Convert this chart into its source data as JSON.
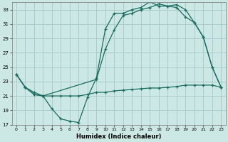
{
  "xlabel": "Humidex (Indice chaleur)",
  "bg_color": "#cce8e4",
  "grid_color": "#aaccca",
  "line_color": "#1a6b60",
  "xlim": [
    -0.5,
    23.5
  ],
  "ylim": [
    17,
    34
  ],
  "xticks": [
    0,
    1,
    2,
    3,
    4,
    5,
    6,
    7,
    8,
    9,
    10,
    11,
    12,
    13,
    14,
    15,
    16,
    17,
    18,
    19,
    20,
    21,
    22,
    23
  ],
  "yticks": [
    17,
    19,
    21,
    23,
    25,
    27,
    29,
    31,
    33
  ],
  "series1_x": [
    0,
    1,
    2,
    3,
    4,
    5,
    6,
    7,
    8,
    9,
    10,
    11,
    12,
    13,
    14,
    15,
    16,
    17,
    18,
    19,
    20,
    21,
    22,
    23
  ],
  "series1_y": [
    24.0,
    22.2,
    21.2,
    21.0,
    19.2,
    17.8,
    17.5,
    17.3,
    20.8,
    23.5,
    30.3,
    32.5,
    32.5,
    33.0,
    33.3,
    34.1,
    33.5,
    33.5,
    33.7,
    33.0,
    31.2,
    29.2,
    25.0,
    22.2
  ],
  "series2_x": [
    0,
    1,
    2,
    3,
    4,
    5,
    6,
    7,
    8,
    9,
    10,
    11,
    12,
    13,
    14,
    15,
    16,
    17,
    18,
    19,
    20,
    21,
    22,
    23
  ],
  "series2_y": [
    24.0,
    22.2,
    21.2,
    21.0,
    21.0,
    21.0,
    21.0,
    21.0,
    21.2,
    21.5,
    21.5,
    21.7,
    21.8,
    21.9,
    22.0,
    22.1,
    22.1,
    22.2,
    22.3,
    22.5,
    22.5,
    22.5,
    22.5,
    22.2
  ],
  "series3_x": [
    0,
    1,
    2,
    3,
    9,
    10,
    11,
    12,
    13,
    14,
    15,
    16,
    17,
    18,
    19,
    20,
    21,
    22,
    23
  ],
  "series3_y": [
    24.0,
    22.2,
    21.5,
    21.0,
    23.3,
    27.5,
    30.2,
    32.2,
    32.5,
    33.0,
    33.3,
    33.8,
    33.5,
    33.3,
    32.0,
    31.2,
    29.2,
    25.0,
    22.2
  ]
}
